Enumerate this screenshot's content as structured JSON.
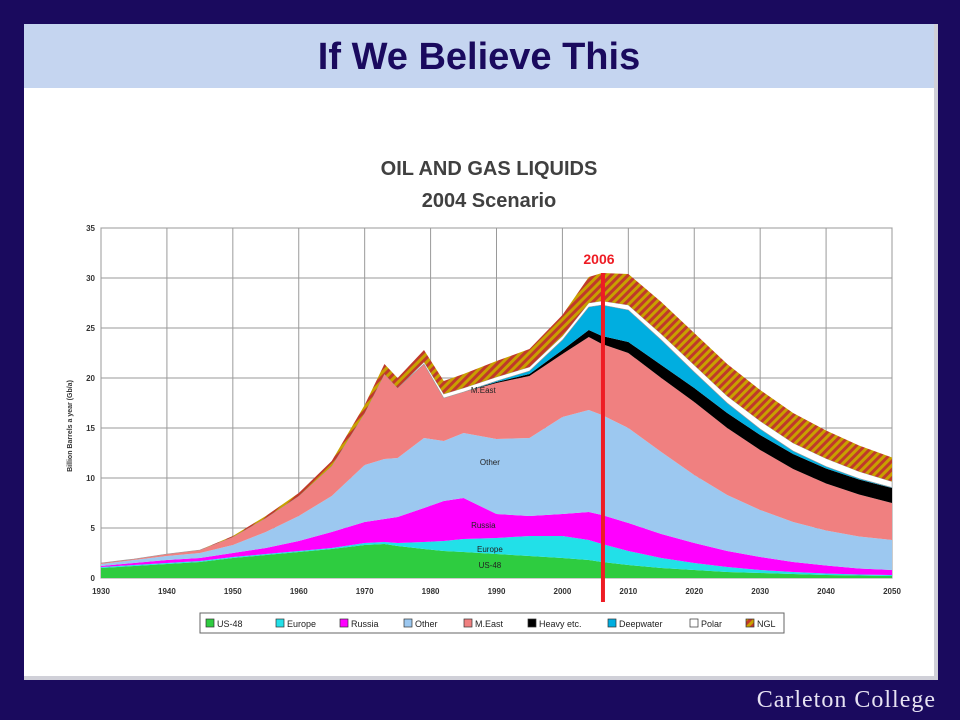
{
  "slide": {
    "title": "If We Believe This",
    "footer": "Carleton College"
  },
  "chart_data": {
    "type": "area",
    "title": "OIL AND GAS LIQUIDS",
    "subtitle": "2004 Scenario",
    "ylabel": "Billion Barrels a year (Gb/a)",
    "xlabel": "",
    "ylim": [
      0,
      35
    ],
    "xlim": [
      1930,
      2050
    ],
    "grid": true,
    "stacked": true,
    "y_ticks": [
      0,
      5,
      10,
      15,
      20,
      25,
      30,
      35
    ],
    "x_ticks": [
      1930,
      1940,
      1950,
      1960,
      1970,
      1980,
      1990,
      2000,
      2010,
      2020,
      2030,
      2040,
      2050
    ],
    "x": [
      1930,
      1935,
      1940,
      1945,
      1950,
      1955,
      1960,
      1965,
      1970,
      1973,
      1975,
      1979,
      1982,
      1985,
      1990,
      1995,
      2000,
      2004,
      2006,
      2010,
      2015,
      2020,
      2025,
      2030,
      2035,
      2040,
      2045,
      2050
    ],
    "series": [
      {
        "name": "US-48",
        "color": "#2ecc40",
        "values": [
          1.0,
          1.2,
          1.4,
          1.6,
          2.0,
          2.3,
          2.6,
          2.9,
          3.3,
          3.4,
          3.2,
          2.9,
          2.7,
          2.6,
          2.4,
          2.2,
          2.0,
          1.8,
          1.6,
          1.3,
          1.0,
          0.8,
          0.6,
          0.5,
          0.4,
          0.3,
          0.25,
          0.2
        ]
      },
      {
        "name": "Europe",
        "color": "#22e0e8",
        "values": [
          0.1,
          0.1,
          0.1,
          0.1,
          0.1,
          0.1,
          0.1,
          0.1,
          0.2,
          0.2,
          0.3,
          0.7,
          1.0,
          1.3,
          1.6,
          2.0,
          2.2,
          2.0,
          1.8,
          1.4,
          1.0,
          0.7,
          0.5,
          0.3,
          0.2,
          0.15,
          0.1,
          0.1
        ]
      },
      {
        "name": "Russia",
        "color": "#ff00ff",
        "values": [
          0.1,
          0.2,
          0.3,
          0.3,
          0.4,
          0.6,
          1.0,
          1.6,
          2.1,
          2.3,
          2.6,
          3.4,
          4.0,
          4.1,
          2.4,
          2.0,
          2.2,
          2.8,
          2.9,
          2.8,
          2.4,
          2.0,
          1.6,
          1.3,
          1.0,
          0.8,
          0.6,
          0.5
        ]
      },
      {
        "name": "Other",
        "color": "#9cc8f0",
        "values": [
          0.2,
          0.3,
          0.4,
          0.5,
          0.8,
          1.6,
          2.5,
          3.6,
          5.7,
          6.0,
          5.9,
          7.0,
          6.0,
          6.5,
          7.5,
          7.8,
          9.7,
          10.2,
          10.0,
          9.5,
          8.2,
          6.8,
          5.6,
          4.7,
          4.0,
          3.5,
          3.2,
          3.0
        ]
      },
      {
        "name": "M.East",
        "color": "#f08080",
        "values": [
          0.1,
          0.1,
          0.2,
          0.3,
          0.8,
          1.4,
          2.0,
          3.0,
          5.2,
          8.5,
          7.0,
          7.4,
          4.3,
          4.1,
          5.6,
          6.2,
          6.3,
          7.3,
          7.1,
          7.5,
          7.4,
          7.3,
          6.7,
          6.0,
          5.3,
          4.7,
          4.2,
          3.7
        ]
      },
      {
        "name": "Heavy etc.",
        "color": "#000000",
        "values": [
          0,
          0,
          0,
          0,
          0,
          0,
          0,
          0,
          0,
          0,
          0,
          0,
          0,
          0,
          0.1,
          0.2,
          0.4,
          0.7,
          0.8,
          1.1,
          1.3,
          1.4,
          1.5,
          1.5,
          1.5,
          1.5,
          1.5,
          1.5
        ]
      },
      {
        "name": "Deepwater",
        "color": "#00aee0",
        "values": [
          0,
          0,
          0,
          0,
          0,
          0,
          0,
          0,
          0,
          0,
          0,
          0,
          0,
          0,
          0.1,
          0.3,
          1.0,
          2.3,
          3.1,
          3.2,
          2.5,
          1.6,
          1.0,
          0.6,
          0.3,
          0.2,
          0.1,
          0.05
        ]
      },
      {
        "name": "Polar",
        "color": "#ffffff",
        "values": [
          0,
          0,
          0,
          0,
          0,
          0,
          0,
          0,
          0,
          0,
          0,
          0.2,
          0.4,
          0.4,
          0.4,
          0.4,
          0.4,
          0.4,
          0.4,
          0.5,
          0.6,
          0.7,
          0.7,
          0.8,
          0.8,
          0.8,
          0.7,
          0.6
        ]
      },
      {
        "name": "NGL",
        "color": "#c88a00",
        "values": [
          0,
          0,
          0,
          0,
          0.1,
          0.2,
          0.3,
          0.5,
          0.8,
          1.0,
          1.0,
          1.2,
          1.3,
          1.4,
          1.6,
          1.8,
          2.1,
          2.6,
          2.8,
          3.1,
          3.2,
          3.2,
          3.2,
          3.1,
          3.0,
          2.8,
          2.6,
          2.4
        ]
      }
    ],
    "annotations": [
      {
        "text": "M.East"
      },
      {
        "text": "Other"
      },
      {
        "text": "Russia"
      },
      {
        "text": "Europe"
      },
      {
        "text": "US-48"
      }
    ],
    "marker": {
      "label": "2006",
      "year": 2006,
      "color": "#ee1c24"
    },
    "legend": "bottom"
  }
}
